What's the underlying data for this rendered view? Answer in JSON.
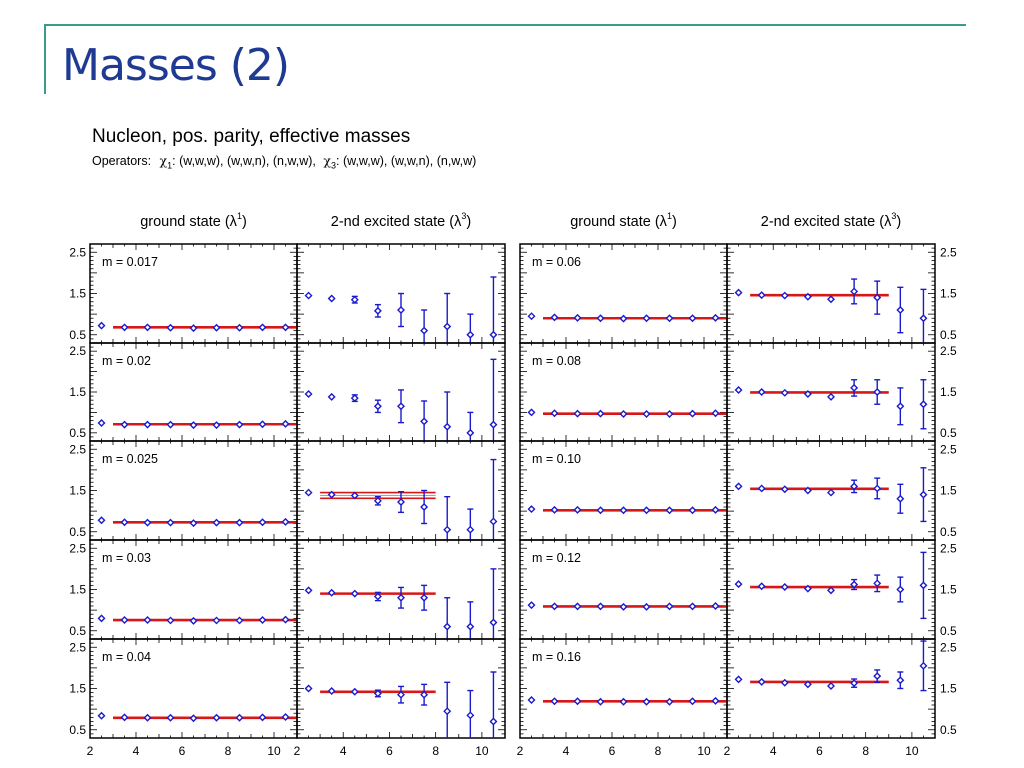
{
  "slide": {
    "title": "Masses (2)"
  },
  "figure": {
    "title": "Nucleon, pos. parity,  effective masses",
    "operators_label": "Operators:",
    "chi1_label": ": (w,w,w), (w,w,n), (n,w,w),",
    "chi3_label": ": (w,w,w), (w,w,n), (n,w,w)",
    "chi_symbol": "χ",
    "chi1_sub": "1",
    "chi3_sub": "3"
  },
  "chart_data": {
    "type": "scatter",
    "layout": "grid of 5 rows x 4 columns, errorbar points with red plateau fit bands",
    "x_range": [
      2,
      11
    ],
    "y_range": [
      0.3,
      2.7
    ],
    "x_ticks": [
      2,
      4,
      6,
      8,
      10
    ],
    "y_ticks": [
      0.5,
      1.5,
      2.5
    ],
    "y_ticks_right_only_last_column": true,
    "columns": [
      {
        "title": "ground state (λ",
        "sup": "1",
        "close": ")"
      },
      {
        "title": "2-nd excited state (λ",
        "sup": "3",
        "close": ")"
      },
      {
        "title": "ground state (λ",
        "sup": "1",
        "close": ")"
      },
      {
        "title": "2-nd excited state (λ",
        "sup": "3",
        "close": ")"
      }
    ],
    "row_labels_left": [
      "m = 0.017",
      "m = 0.02",
      "m = 0.025",
      "m = 0.03",
      "m = 0.04"
    ],
    "row_labels_right": [
      "m = 0.06",
      "m = 0.08",
      "m = 0.10",
      "m = 0.12",
      "m = 0.16"
    ],
    "x": [
      2.5,
      3.5,
      4.5,
      5.5,
      6.5,
      7.5,
      8.5,
      9.5,
      10.5
    ],
    "panels": [
      [
        {
          "y": [
            0.72,
            0.68,
            0.68,
            0.67,
            0.66,
            0.67,
            0.67,
            0.68,
            0.68
          ],
          "err": [
            0.02,
            0.02,
            0.02,
            0.02,
            0.02,
            0.02,
            0.02,
            0.02,
            0.03
          ],
          "fit": {
            "value": 0.68,
            "half_width": 0.015,
            "range": [
              3,
              11
            ]
          }
        },
        {
          "y": [
            1.45,
            1.38,
            1.35,
            1.08,
            1.1,
            0.6,
            0.7,
            0.5,
            0.5
          ],
          "err": [
            0.02,
            0.03,
            0.08,
            0.15,
            0.4,
            0.5,
            0.8,
            0.5,
            1.4
          ],
          "fit": null
        },
        {
          "y": [
            0.95,
            0.92,
            0.91,
            0.9,
            0.89,
            0.9,
            0.9,
            0.9,
            0.91
          ],
          "err": [
            0.02,
            0.02,
            0.02,
            0.02,
            0.02,
            0.02,
            0.02,
            0.02,
            0.02
          ],
          "fit": {
            "value": 0.9,
            "half_width": 0.015,
            "range": [
              3,
              11
            ]
          }
        },
        {
          "y": [
            1.52,
            1.46,
            1.45,
            1.42,
            1.36,
            1.55,
            1.4,
            1.1,
            0.9
          ],
          "err": [
            0.02,
            0.03,
            0.03,
            0.04,
            0.07,
            0.3,
            0.4,
            0.55,
            0.7
          ],
          "fit": {
            "value": 1.46,
            "half_width": 0.03,
            "range": [
              3,
              9
            ]
          }
        }
      ],
      [
        {
          "y": [
            0.74,
            0.7,
            0.7,
            0.7,
            0.69,
            0.69,
            0.7,
            0.71,
            0.72
          ],
          "err": [
            0.02,
            0.02,
            0.02,
            0.02,
            0.02,
            0.02,
            0.02,
            0.02,
            0.03
          ],
          "fit": {
            "value": 0.71,
            "half_width": 0.015,
            "range": [
              3,
              11
            ]
          }
        },
        {
          "y": [
            1.45,
            1.38,
            1.35,
            1.15,
            1.15,
            0.78,
            0.65,
            0.5,
            0.7
          ],
          "err": [
            0.02,
            0.03,
            0.08,
            0.15,
            0.4,
            0.5,
            0.85,
            0.5,
            1.6
          ],
          "fit": null
        },
        {
          "y": [
            1.0,
            0.98,
            0.97,
            0.97,
            0.96,
            0.96,
            0.96,
            0.97,
            0.98
          ],
          "err": [
            0.02,
            0.02,
            0.02,
            0.02,
            0.02,
            0.02,
            0.02,
            0.02,
            0.02
          ],
          "fit": {
            "value": 0.97,
            "half_width": 0.015,
            "range": [
              3,
              11
            ]
          }
        },
        {
          "y": [
            1.55,
            1.5,
            1.48,
            1.45,
            1.38,
            1.6,
            1.5,
            1.15,
            1.2
          ],
          "err": [
            0.02,
            0.03,
            0.03,
            0.04,
            0.07,
            0.2,
            0.3,
            0.45,
            0.6
          ],
          "fit": {
            "value": 1.49,
            "half_width": 0.04,
            "range": [
              3,
              9
            ]
          }
        }
      ],
      [
        {
          "y": [
            0.78,
            0.73,
            0.72,
            0.72,
            0.71,
            0.72,
            0.72,
            0.73,
            0.74
          ],
          "err": [
            0.02,
            0.02,
            0.02,
            0.02,
            0.02,
            0.02,
            0.02,
            0.02,
            0.03
          ],
          "fit": {
            "value": 0.73,
            "half_width": 0.015,
            "range": [
              3,
              11
            ]
          }
        },
        {
          "y": [
            1.45,
            1.4,
            1.38,
            1.25,
            1.22,
            1.1,
            0.55,
            0.55,
            0.75
          ],
          "err": [
            0.02,
            0.03,
            0.06,
            0.1,
            0.25,
            0.4,
            0.8,
            0.5,
            1.5
          ],
          "fit": {
            "value": 1.38,
            "half_width": 0.07,
            "range": [
              3,
              8
            ]
          }
        },
        {
          "y": [
            1.05,
            1.03,
            1.03,
            1.02,
            1.02,
            1.02,
            1.02,
            1.02,
            1.03
          ],
          "err": [
            0.02,
            0.02,
            0.02,
            0.02,
            0.02,
            0.02,
            0.02,
            0.02,
            0.02
          ],
          "fit": {
            "value": 1.02,
            "half_width": 0.015,
            "range": [
              3,
              11
            ]
          }
        },
        {
          "y": [
            1.6,
            1.55,
            1.53,
            1.5,
            1.45,
            1.6,
            1.55,
            1.3,
            1.4
          ],
          "err": [
            0.02,
            0.03,
            0.03,
            0.04,
            0.06,
            0.15,
            0.25,
            0.35,
            0.65
          ],
          "fit": {
            "value": 1.54,
            "half_width": 0.04,
            "range": [
              3,
              9
            ]
          }
        }
      ],
      [
        {
          "y": [
            0.8,
            0.76,
            0.76,
            0.75,
            0.74,
            0.75,
            0.75,
            0.76,
            0.77
          ],
          "err": [
            0.02,
            0.02,
            0.02,
            0.02,
            0.02,
            0.02,
            0.02,
            0.02,
            0.03
          ],
          "fit": {
            "value": 0.76,
            "half_width": 0.015,
            "range": [
              3,
              11
            ]
          }
        },
        {
          "y": [
            1.48,
            1.42,
            1.4,
            1.33,
            1.3,
            1.3,
            0.6,
            0.6,
            0.7
          ],
          "err": [
            0.02,
            0.03,
            0.06,
            0.1,
            0.25,
            0.3,
            0.7,
            0.6,
            1.3
          ],
          "fit": {
            "value": 1.4,
            "half_width": 0.06,
            "range": [
              3,
              8
            ]
          }
        },
        {
          "y": [
            1.12,
            1.09,
            1.09,
            1.09,
            1.08,
            1.08,
            1.09,
            1.09,
            1.1
          ],
          "err": [
            0.02,
            0.02,
            0.02,
            0.02,
            0.02,
            0.02,
            0.02,
            0.02,
            0.02
          ],
          "fit": {
            "value": 1.09,
            "half_width": 0.015,
            "range": [
              3,
              11
            ]
          }
        },
        {
          "y": [
            1.63,
            1.58,
            1.56,
            1.52,
            1.48,
            1.62,
            1.65,
            1.5,
            1.6
          ],
          "err": [
            0.02,
            0.03,
            0.03,
            0.04,
            0.06,
            0.12,
            0.2,
            0.3,
            0.8
          ],
          "fit": {
            "value": 1.56,
            "half_width": 0.04,
            "range": [
              3,
              9
            ]
          }
        }
      ],
      [
        {
          "y": [
            0.84,
            0.8,
            0.79,
            0.79,
            0.78,
            0.79,
            0.79,
            0.8,
            0.81
          ],
          "err": [
            0.02,
            0.02,
            0.02,
            0.02,
            0.02,
            0.02,
            0.02,
            0.02,
            0.03
          ],
          "fit": {
            "value": 0.79,
            "half_width": 0.015,
            "range": [
              3,
              11
            ]
          }
        },
        {
          "y": [
            1.5,
            1.44,
            1.42,
            1.38,
            1.35,
            1.35,
            0.95,
            0.85,
            0.7
          ],
          "err": [
            0.02,
            0.03,
            0.05,
            0.08,
            0.2,
            0.25,
            0.7,
            0.6,
            1.2
          ],
          "fit": {
            "value": 1.42,
            "half_width": 0.06,
            "range": [
              3,
              8
            ]
          }
        },
        {
          "y": [
            1.22,
            1.19,
            1.19,
            1.18,
            1.18,
            1.18,
            1.18,
            1.19,
            1.2
          ],
          "err": [
            0.02,
            0.02,
            0.02,
            0.02,
            0.02,
            0.02,
            0.02,
            0.02,
            0.02
          ],
          "fit": {
            "value": 1.19,
            "half_width": 0.015,
            "range": [
              3,
              11
            ]
          }
        },
        {
          "y": [
            1.72,
            1.66,
            1.64,
            1.6,
            1.56,
            1.63,
            1.8,
            1.7,
            2.05
          ],
          "err": [
            0.02,
            0.03,
            0.03,
            0.04,
            0.06,
            0.1,
            0.15,
            0.2,
            0.6
          ],
          "fit": {
            "value": 1.66,
            "half_width": 0.035,
            "range": [
              3,
              9
            ]
          }
        }
      ]
    ],
    "colors": {
      "points": "#1a1acc",
      "fit": "#d81818",
      "frame": "#000000"
    }
  }
}
